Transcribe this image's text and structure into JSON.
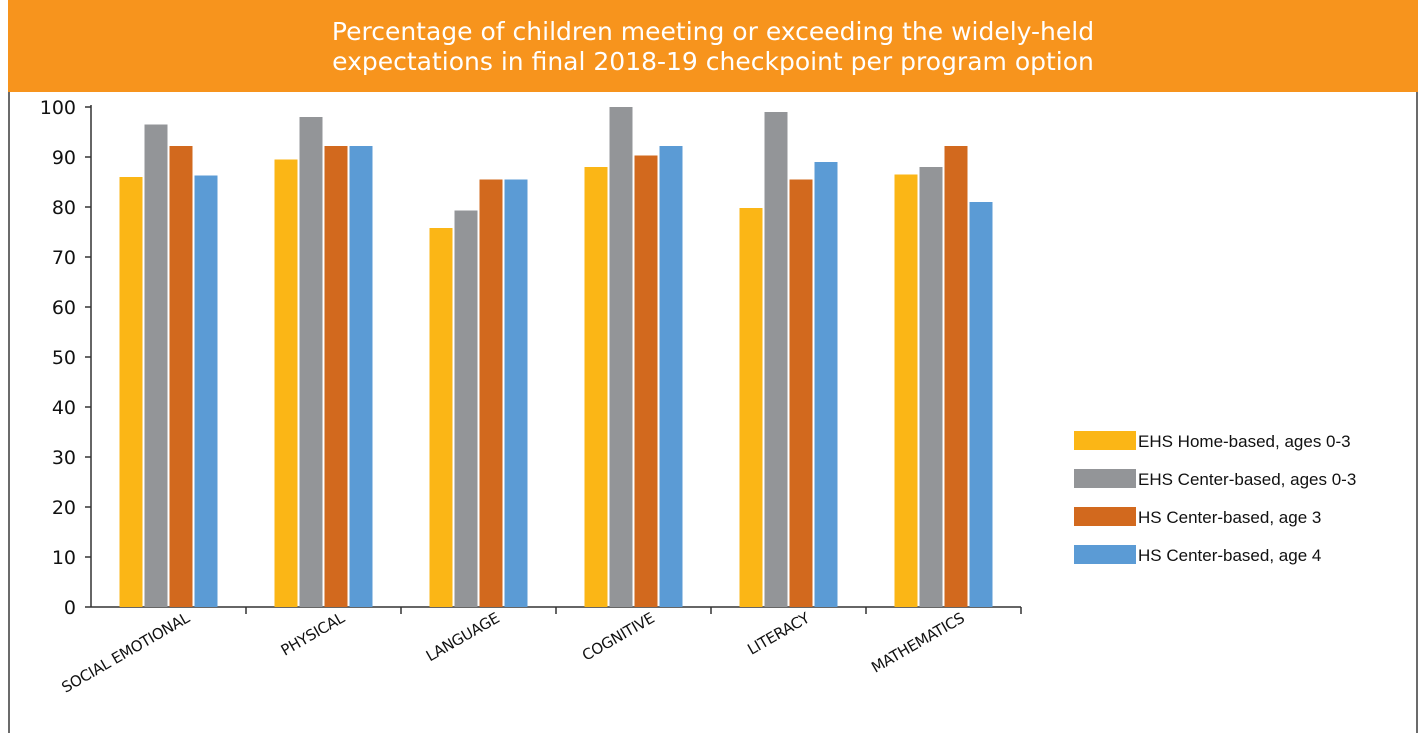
{
  "chart_data": {
    "type": "bar",
    "title_lines": [
      "Percentage of children meeting or exceeding the widely-held",
      "expectations in final 2018-19 checkpoint per program option"
    ],
    "categories": [
      "SOCIAL EMOTIONAL",
      "PHYSICAL",
      "LANGUAGE",
      "COGNITIVE",
      "LITERACY",
      "MATHEMATICS"
    ],
    "series": [
      {
        "name": "EHS Home-based, ages 0-3",
        "color": "#fbb616",
        "values": [
          86,
          89.5,
          75.8,
          88,
          79.8,
          86.5
        ]
      },
      {
        "name": "EHS Center-based, ages 0-3",
        "color": "#939598",
        "values": [
          96.5,
          98,
          79.3,
          100,
          99,
          88
        ]
      },
      {
        "name": "HS Center-based, age 3",
        "color": "#d2691e",
        "values": [
          92.2,
          92.2,
          85.5,
          90.3,
          85.5,
          92.2
        ]
      },
      {
        "name": "HS Center-based, age 4",
        "color": "#5b9bd5",
        "values": [
          86.3,
          92.2,
          85.5,
          92.2,
          89,
          81
        ]
      }
    ],
    "y_ticks": [
      0,
      10,
      20,
      30,
      40,
      50,
      60,
      70,
      80,
      90,
      100
    ],
    "ylim": [
      0,
      100
    ],
    "legend_position": "right",
    "grid": false
  }
}
